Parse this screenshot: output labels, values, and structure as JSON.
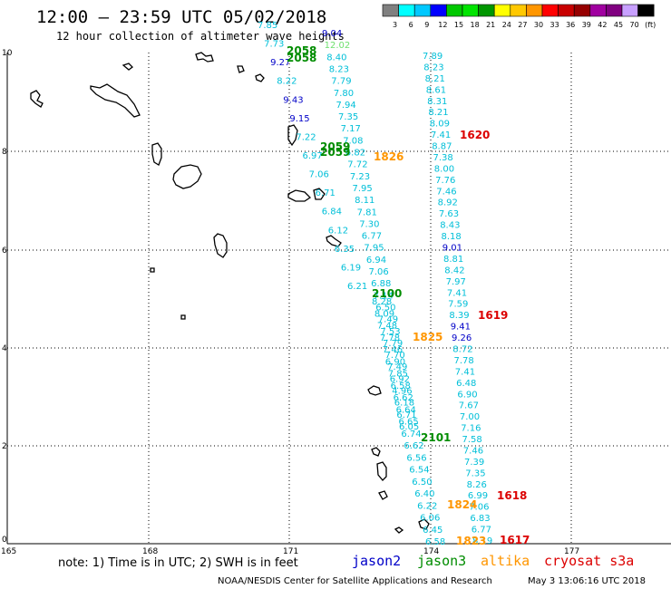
{
  "header": {
    "title": "12:00 – 23:59 UTC 05/02/2018",
    "subtitle": "12 hour collection of altimeter wave heights"
  },
  "colorbar": {
    "colors": [
      "#808080",
      "#00ffff",
      "#00c8ff",
      "#0000ff",
      "#00c800",
      "#00e400",
      "#009600",
      "#ffff00",
      "#ffc800",
      "#ff9600",
      "#ff0000",
      "#c80000",
      "#960000",
      "#a000a0",
      "#800080",
      "#c8a0ff",
      "#000000"
    ],
    "labels": [
      "3",
      "6",
      "9",
      "12",
      "15",
      "18",
      "21",
      "24",
      "27",
      "30",
      "33",
      "36",
      "39",
      "42",
      "45",
      "70",
      "(ft)"
    ]
  },
  "axes": {
    "x_ticks": [
      "165",
      "168",
      "171",
      "174",
      "177"
    ],
    "y_ticks": [
      "0",
      "2",
      "4",
      "6",
      "8",
      "10"
    ]
  },
  "tracks": {
    "colors": {
      "jason2": "#0000c8",
      "jason3": "#008c00",
      "altika": "#ff9600",
      "cryosat": "#dc0000",
      "swh_cyan": "#00bfd8",
      "swh_light_green": "#6ee06e"
    },
    "right_track_values": [
      "7.89",
      "8.23",
      "8.21",
      "8.61",
      "8.31",
      "8.21",
      "8.09",
      "7.41",
      "8.87",
      "7.38",
      "8.00",
      "7.76",
      "7.46",
      "8.92",
      "7.63",
      "8.43",
      "8.18",
      "9.01",
      "8.81",
      "8.42",
      "7.97",
      "7.41",
      "7.59",
      "8.39",
      "9.41",
      "9.26",
      "8.72",
      "7.78",
      "7.41",
      "6.48",
      "6.90",
      "7.67",
      "7.00",
      "7.16",
      "7.58",
      "7.46",
      "7.39",
      "7.35",
      "8.26",
      "6.99",
      "7.06",
      "6.83",
      "6.77",
      "8.19"
    ],
    "middle_track_values": [
      "9.04",
      "12.02",
      "8.40",
      "8.23",
      "7.79",
      "7.80",
      "7.94",
      "7.35",
      "7.17",
      "7.08",
      "6.82",
      "7.72",
      "7.23",
      "7.95",
      "8.11",
      "7.81",
      "7.30",
      "6.77",
      "7.95",
      "6.94",
      "7.06",
      "6.88",
      "7.14",
      "6.50",
      "7.49",
      "7.53",
      "7.79",
      "7.70",
      "7.49",
      "6.92",
      "4.96",
      "6.18",
      "6.71",
      "6.05"
    ],
    "inner_track_values": [
      "8.28",
      "8.09",
      "7.48",
      "7.78",
      "7.46",
      "6.90",
      "7.85",
      "6.58",
      "6.62",
      "6.64",
      "6.65",
      "6.74",
      "6.62",
      "6.56",
      "6.54",
      "6.50",
      "6.40",
      "6.22",
      "6.06",
      "6.45",
      "6.58"
    ],
    "left_track_values": [
      "7.85",
      "7.73",
      "9.27",
      "8.22",
      "9.43",
      "9.15",
      "7.22",
      "6.97",
      "7.06",
      "6.71",
      "6.84",
      "6.12",
      "6.35",
      "6.19",
      "6.21"
    ],
    "time_labels": [
      {
        "text": "2058",
        "sat": "jason3"
      },
      {
        "text": "2058",
        "sat": "jason3"
      },
      {
        "text": "2059",
        "sat": "jason3"
      },
      {
        "text": "2059",
        "sat": "jason3"
      },
      {
        "text": "1826",
        "sat": "altika"
      },
      {
        "text": "1620",
        "sat": "cryosat"
      },
      {
        "text": "2100",
        "sat": "jason3"
      },
      {
        "text": "1619",
        "sat": "cryosat"
      },
      {
        "text": "1825",
        "sat": "altika"
      },
      {
        "text": "2101",
        "sat": "jason3"
      },
      {
        "text": "1618",
        "sat": "cryosat"
      },
      {
        "text": "1824",
        "sat": "altika"
      },
      {
        "text": "1823",
        "sat": "altika"
      },
      {
        "text": "1617",
        "sat": "cryosat"
      }
    ]
  },
  "footer": {
    "note": "note:  1) Time is in UTC;  2) SWH is in feet",
    "legend": [
      {
        "label": "jason2",
        "color": "#0000c8"
      },
      {
        "label": "jason3",
        "color": "#008c00"
      },
      {
        "label": "altika",
        "color": "#ff9600"
      },
      {
        "label": "cryosat s3a",
        "color": "#dc0000"
      }
    ],
    "credit": "NOAA/NESDIS Center for Satellite Applications and Research",
    "timestamp": "May  3 13:06:16 UTC 2018"
  }
}
